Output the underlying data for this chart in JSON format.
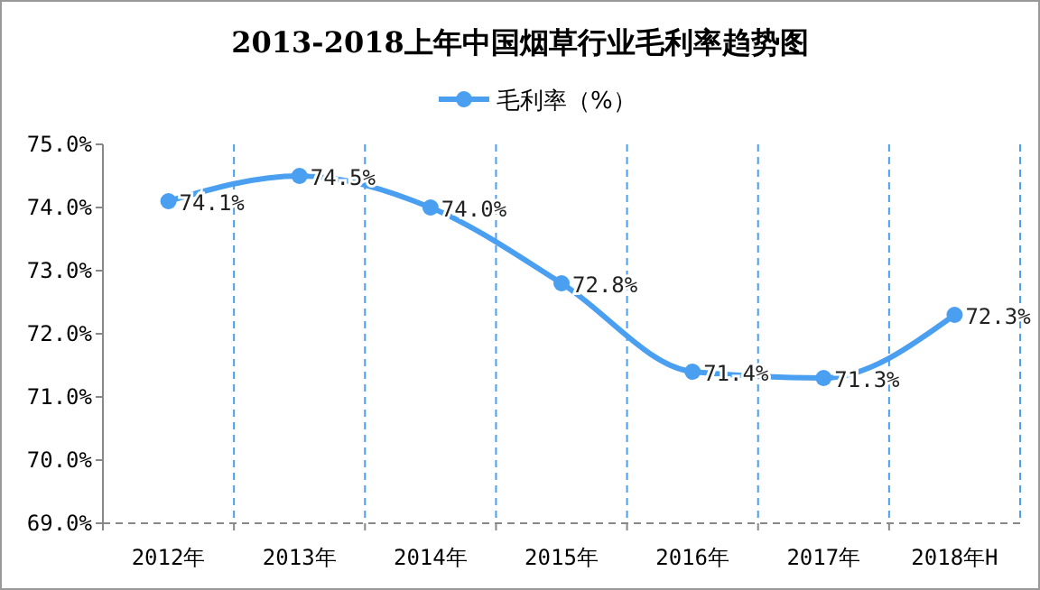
{
  "chart_data": {
    "type": "line",
    "title": "2013-2018上年中国烟草行业毛利率趋势图",
    "categories": [
      "2012年",
      "2013年",
      "2014年",
      "2015年",
      "2016年",
      "2017年",
      "2018年H"
    ],
    "series": [
      {
        "name": "毛利率（%）",
        "color": "#4a9ff0",
        "values": [
          74.1,
          74.5,
          74.0,
          72.8,
          71.4,
          71.3,
          72.3
        ],
        "value_labels": [
          "74.1%",
          "74.5%",
          "74.0%",
          "72.8%",
          "71.4%",
          "71.3%",
          "72.3%"
        ]
      }
    ],
    "ylim": [
      69,
      75
    ],
    "yticks": [
      {
        "value": 69,
        "label": "69.0%"
      },
      {
        "value": 70,
        "label": "70.0%"
      },
      {
        "value": 71,
        "label": "71.0%"
      },
      {
        "value": 72,
        "label": "72.0%"
      },
      {
        "value": 73,
        "label": "73.0%"
      },
      {
        "value": 74,
        "label": "74.0%"
      },
      {
        "value": 75,
        "label": "75.0%"
      }
    ],
    "grid": "x",
    "legend": "top",
    "marker": "circle",
    "line_style": "solid"
  }
}
